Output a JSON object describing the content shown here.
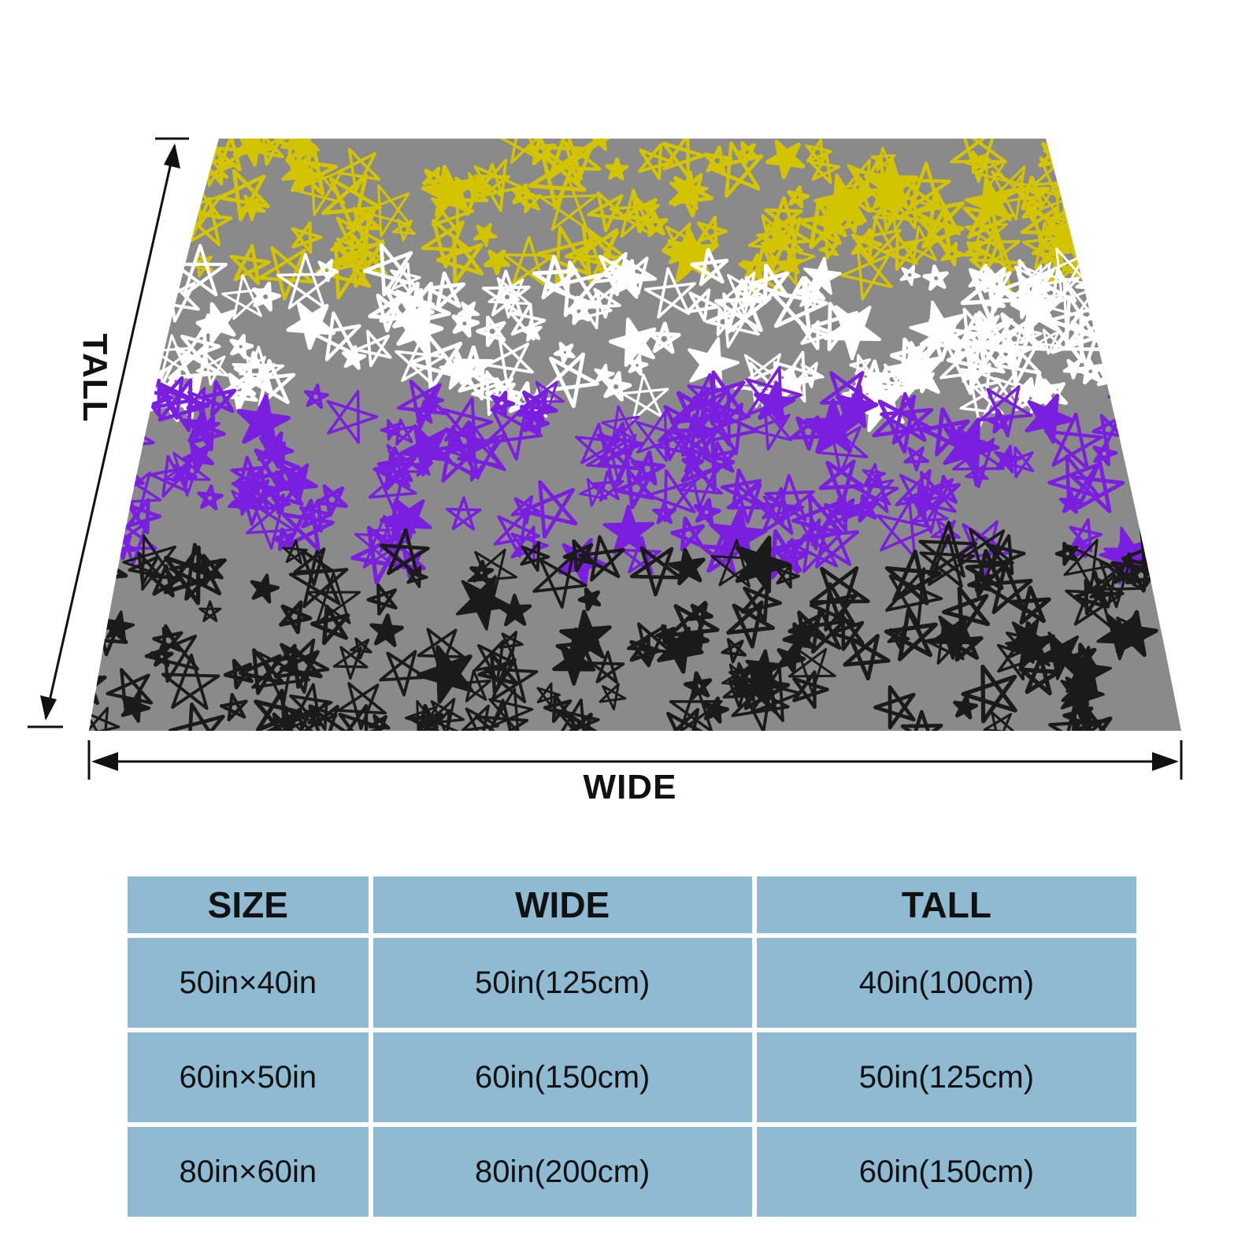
{
  "illustration": {
    "label_wide": "WIDE",
    "label_tall": "TALL",
    "background_color": "#8a8a8a",
    "stripes": [
      {
        "name": "yellow",
        "color": "#d4c400",
        "icon": "star-icon"
      },
      {
        "name": "white",
        "color": "#ffffff",
        "icon": "star-icon"
      },
      {
        "name": "purple",
        "color": "#7a1fe0",
        "icon": "star-icon"
      },
      {
        "name": "black",
        "color": "#1a1a1a",
        "icon": "star-icon"
      }
    ]
  },
  "size_table": {
    "headers": [
      "SIZE",
      "WIDE",
      "TALL"
    ],
    "rows": [
      [
        "50in×40in",
        "50in(125cm)",
        "40in(100cm)"
      ],
      [
        "60in×50in",
        "60in(150cm)",
        "50in(125cm)"
      ],
      [
        "80in×60in",
        "80in(200cm)",
        "60in(150cm)"
      ]
    ],
    "cell_color": "#8fbbd2"
  }
}
